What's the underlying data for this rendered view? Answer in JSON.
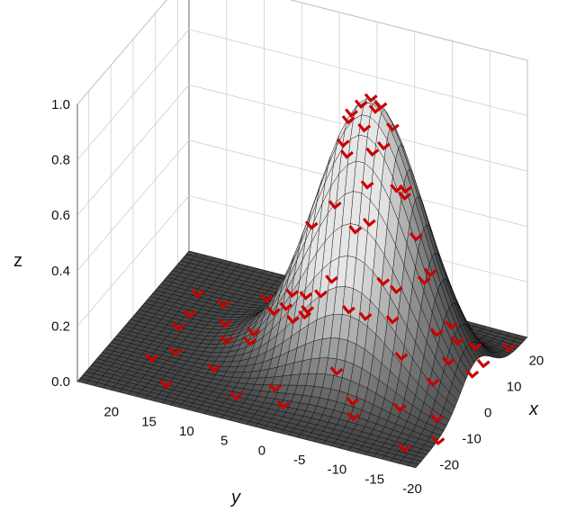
{
  "chart_data": {
    "type": "surface3d",
    "title": "",
    "surface": {
      "function": "gaussian",
      "peak_z": 0.98,
      "peak_x": 2,
      "peak_y": -6,
      "sigma": 7,
      "x_range": [
        -25,
        25
      ],
      "y_range": [
        -20,
        25
      ],
      "grid_steps": 40,
      "fill_low": "#222222",
      "fill_high": "#e6e6e6",
      "mesh_color": "#000000"
    },
    "axes": {
      "x": {
        "label": "x",
        "ticks": [
          "-20",
          "-10",
          "0",
          "10",
          "20"
        ],
        "tick_values": [
          -20,
          -10,
          0,
          10,
          20
        ],
        "range": [
          -25,
          25
        ]
      },
      "y": {
        "label": "y",
        "ticks": [
          "20",
          "15",
          "10",
          "5",
          "0",
          "-5",
          "-10",
          "-15",
          "-20"
        ],
        "tick_values": [
          20,
          15,
          10,
          5,
          0,
          -5,
          -10,
          -15,
          -20
        ],
        "range": [
          -20,
          25
        ]
      },
      "z": {
        "label": "z",
        "ticks": [
          "0.0",
          "0.2",
          "0.4",
          "0.6",
          "0.8",
          "1.0"
        ],
        "tick_values": [
          0,
          0.2,
          0.4,
          0.6,
          0.8,
          1.0
        ],
        "range": [
          0,
          1.0
        ]
      },
      "grid": true
    },
    "points": {
      "marker": "v-chevron",
      "color": "#cc0000",
      "data": [
        [
          2,
          -6,
          0.98
        ],
        [
          1,
          -5,
          0.96
        ],
        [
          3,
          -7,
          0.95
        ],
        [
          0,
          -4,
          0.93
        ],
        [
          4,
          -6,
          0.92
        ],
        [
          -1,
          -6,
          0.9
        ],
        [
          2,
          -3,
          0.88
        ],
        [
          5,
          -8,
          0.86
        ],
        [
          1,
          -8,
          0.83
        ],
        [
          -2,
          -4,
          0.8
        ],
        [
          3,
          -2,
          0.78
        ],
        [
          6,
          -5,
          0.74
        ],
        [
          -3,
          -7,
          0.72
        ],
        [
          0,
          -10,
          0.7
        ],
        [
          4,
          -10,
          0.66
        ],
        [
          -4,
          -3,
          0.63
        ],
        [
          7,
          -9,
          0.6
        ],
        [
          -5,
          -6,
          0.57
        ],
        [
          2,
          -12,
          0.52
        ],
        [
          -1,
          1,
          0.5
        ],
        [
          8,
          -4,
          0.46
        ],
        [
          -6,
          -10,
          0.42
        ],
        [
          5,
          -13,
          0.37
        ],
        [
          -7,
          -2,
          0.33
        ],
        [
          9,
          -11,
          0.29
        ],
        [
          -3,
          3,
          0.26
        ],
        [
          10,
          -7,
          0.22
        ],
        [
          -8,
          -13,
          0.19
        ],
        [
          1,
          5,
          0.16
        ],
        [
          11,
          -14,
          0.13
        ],
        [
          -10,
          -5,
          0.1
        ],
        [
          6,
          4,
          0.09
        ],
        [
          -5,
          8,
          0.07
        ],
        [
          13,
          -2,
          0.06
        ],
        [
          -12,
          -14,
          0.05
        ],
        [
          9,
          9,
          0.04
        ],
        [
          -14,
          2,
          0.03
        ],
        [
          15,
          -16,
          0.03
        ],
        [
          -2,
          12,
          0.02
        ],
        [
          14,
          6,
          0.02
        ],
        [
          -16,
          -9,
          0.02
        ],
        [
          4,
          14,
          0.01
        ],
        [
          -11,
          11,
          0.01
        ],
        [
          18,
          -10,
          0.01
        ],
        [
          -18,
          6,
          0.01
        ],
        [
          10,
          16,
          0.01
        ],
        [
          -20,
          -17,
          0.0
        ],
        [
          19,
          2,
          0.0
        ],
        [
          -8,
          17,
          0.0
        ],
        [
          16,
          12,
          0.0
        ],
        [
          -19,
          15,
          0.0
        ],
        [
          20,
          -19,
          0.0
        ],
        [
          0,
          19,
          0.0
        ],
        [
          -15,
          -20,
          0.0
        ],
        [
          12,
          20,
          0.0
        ],
        [
          7,
          -18,
          0.02
        ],
        [
          -9,
          -18,
          0.01
        ],
        [
          12,
          -18,
          0.01
        ],
        [
          -4,
          -16,
          0.08
        ],
        [
          3,
          -16,
          0.09
        ],
        [
          15,
          -5,
          0.05
        ],
        [
          -13,
          -8,
          0.04
        ],
        [
          8,
          1,
          0.22
        ],
        [
          -6,
          2,
          0.2
        ],
        [
          0,
          9,
          0.05
        ],
        [
          -17,
          0,
          0.01
        ],
        [
          17,
          -13,
          0.01
        ],
        [
          5,
          19,
          0.0
        ],
        [
          -12,
          19,
          0.0
        ],
        [
          20,
          8,
          0.0
        ]
      ]
    }
  },
  "labels": {
    "x": "x",
    "y": "y",
    "z": "z"
  }
}
